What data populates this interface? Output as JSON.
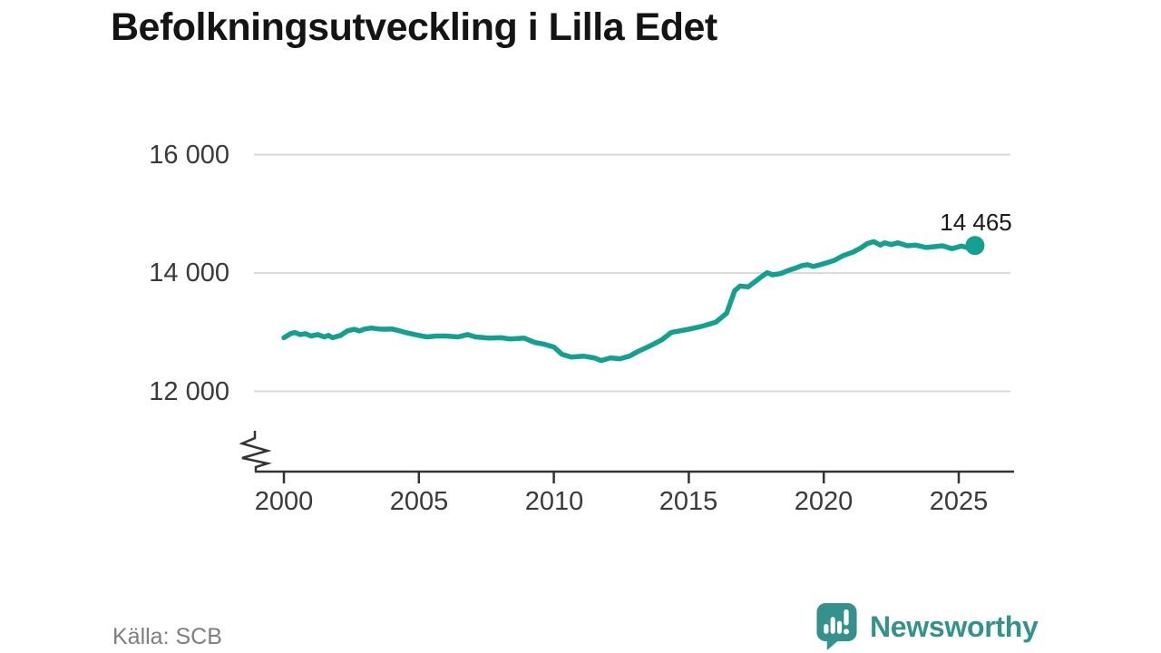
{
  "title": "Befolkningsutveckling i Lilla Edet",
  "footer": {
    "source": "Källa: SCB",
    "brand": "Newsworthy"
  },
  "colors": {
    "line": "#14A090",
    "brand": "#35918B",
    "grid": "#DADADA",
    "axis": "#333333"
  },
  "chart_data": {
    "type": "line",
    "title": "Befolkningsutveckling i Lilla Edet",
    "source": "Källa: SCB",
    "end_label": "14 465",
    "end_value": 14465,
    "x_axis": {
      "ticks": [
        2000,
        2005,
        2010,
        2015,
        2020,
        2025
      ],
      "range": [
        2000,
        2027
      ],
      "broken_axis_symbol": true
    },
    "y_axis": {
      "ticks": [
        {
          "value": 12000,
          "label": "12 000"
        },
        {
          "value": 14000,
          "label": "14 000"
        },
        {
          "value": 16000,
          "label": "16 000"
        }
      ],
      "range": [
        11500,
        16400
      ],
      "grid": true
    },
    "points": [
      [
        2000.0,
        12905
      ],
      [
        2000.25,
        12975
      ],
      [
        2000.4,
        12995
      ],
      [
        2000.6,
        12960
      ],
      [
        2000.8,
        12975
      ],
      [
        2001.0,
        12935
      ],
      [
        2001.25,
        12960
      ],
      [
        2001.5,
        12920
      ],
      [
        2001.65,
        12945
      ],
      [
        2001.8,
        12905
      ],
      [
        2002.1,
        12945
      ],
      [
        2002.35,
        13020
      ],
      [
        2002.6,
        13050
      ],
      [
        2002.8,
        13020
      ],
      [
        2003.0,
        13055
      ],
      [
        2003.25,
        13070
      ],
      [
        2003.5,
        13055
      ],
      [
        2003.75,
        13050
      ],
      [
        2004.0,
        13055
      ],
      [
        2004.3,
        13020
      ],
      [
        2004.5,
        12995
      ],
      [
        2004.7,
        12975
      ],
      [
        2005.0,
        12945
      ],
      [
        2005.3,
        12920
      ],
      [
        2005.65,
        12935
      ],
      [
        2006.0,
        12935
      ],
      [
        2006.45,
        12920
      ],
      [
        2006.8,
        12960
      ],
      [
        2007.1,
        12920
      ],
      [
        2007.6,
        12900
      ],
      [
        2008.05,
        12905
      ],
      [
        2008.4,
        12885
      ],
      [
        2008.9,
        12900
      ],
      [
        2009.3,
        12825
      ],
      [
        2009.65,
        12795
      ],
      [
        2010.0,
        12750
      ],
      [
        2010.3,
        12627
      ],
      [
        2010.65,
        12580
      ],
      [
        2011.1,
        12595
      ],
      [
        2011.5,
        12565
      ],
      [
        2011.75,
        12520
      ],
      [
        2012.1,
        12565
      ],
      [
        2012.45,
        12550
      ],
      [
        2012.8,
        12595
      ],
      [
        2013.1,
        12670
      ],
      [
        2013.6,
        12775
      ],
      [
        2014.0,
        12870
      ],
      [
        2014.35,
        12995
      ],
      [
        2015.0,
        13050
      ],
      [
        2015.45,
        13095
      ],
      [
        2016.0,
        13170
      ],
      [
        2016.4,
        13320
      ],
      [
        2016.7,
        13700
      ],
      [
        2016.9,
        13780
      ],
      [
        2017.2,
        13765
      ],
      [
        2017.7,
        13940
      ],
      [
        2017.9,
        14005
      ],
      [
        2018.1,
        13970
      ],
      [
        2018.4,
        13990
      ],
      [
        2018.7,
        14045
      ],
      [
        2019.0,
        14090
      ],
      [
        2019.2,
        14125
      ],
      [
        2019.4,
        14140
      ],
      [
        2019.6,
        14110
      ],
      [
        2019.8,
        14130
      ],
      [
        2020.1,
        14170
      ],
      [
        2020.4,
        14215
      ],
      [
        2020.7,
        14290
      ],
      [
        2021.1,
        14355
      ],
      [
        2021.4,
        14430
      ],
      [
        2021.6,
        14495
      ],
      [
        2021.85,
        14530
      ],
      [
        2022.1,
        14470
      ],
      [
        2022.25,
        14510
      ],
      [
        2022.5,
        14480
      ],
      [
        2022.75,
        14510
      ],
      [
        2023.1,
        14460
      ],
      [
        2023.4,
        14470
      ],
      [
        2023.8,
        14430
      ],
      [
        2024.1,
        14445
      ],
      [
        2024.4,
        14460
      ],
      [
        2024.75,
        14410
      ],
      [
        2025.1,
        14455
      ],
      [
        2025.3,
        14430
      ],
      [
        2025.6,
        14465
      ]
    ]
  }
}
